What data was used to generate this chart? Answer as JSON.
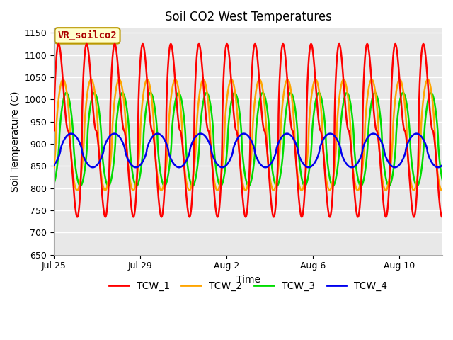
{
  "title": "Soil CO2 West Temperatures",
  "xlabel": "Time",
  "ylabel": "Soil Temperature (C)",
  "ylim": [
    650,
    1160
  ],
  "yticks": [
    650,
    700,
    750,
    800,
    850,
    900,
    950,
    1000,
    1050,
    1100,
    1150
  ],
  "xtick_labels": [
    "Jul 25",
    "Jul 29",
    "Aug 2",
    "Aug 6",
    "Aug 10"
  ],
  "xtick_positions": [
    0,
    4,
    8,
    12,
    16
  ],
  "xlim": [
    0,
    18
  ],
  "annotation_text": "VR_soilco2",
  "annotation_bg": "#ffffcc",
  "annotation_border": "#bb9900",
  "plot_bg": "#e8e8e8",
  "fig_bg": "#ffffff",
  "colors": {
    "TCW_1": "#ff0000",
    "TCW_2": "#ffa500",
    "TCW_3": "#00dd00",
    "TCW_4": "#0000ee"
  },
  "linewidth": 1.8,
  "n_points": 3000,
  "end_day": 18.0,
  "TCW1_amplitude": 195,
  "TCW1_mean": 930,
  "TCW1_period": 1.3,
  "TCW2_amplitude": 125,
  "TCW2_mean": 920,
  "TCW2_period": 1.3,
  "TCW3_amplitude": 105,
  "TCW3_mean": 910,
  "TCW3_period": 1.3,
  "TCW4_amplitude": 38,
  "TCW4_mean": 885,
  "TCW4_period": 2.0,
  "title_fontsize": 12,
  "axis_label_fontsize": 10,
  "tick_fontsize": 9,
  "legend_fontsize": 10
}
